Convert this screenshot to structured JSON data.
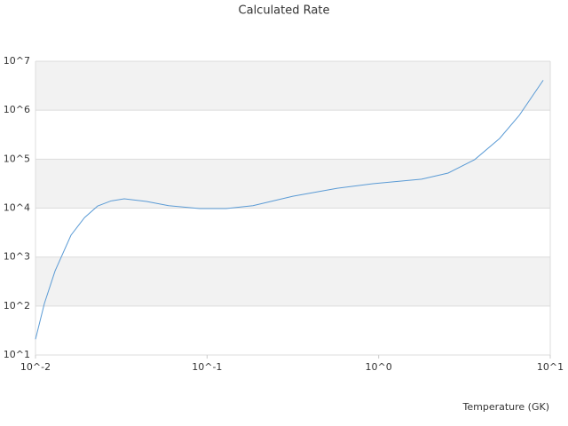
{
  "chart_data": {
    "type": "line",
    "title": "Calculated Rate",
    "x_label": "Temperature (GK)",
    "x_log": true,
    "y_log": true,
    "grid": true,
    "banded": true,
    "xlim": [
      0.01,
      10
    ],
    "ylim": [
      10,
      10000000
    ],
    "xticks": [
      {
        "value": 0.01,
        "label": "10^-2"
      },
      {
        "value": 0.1,
        "label": "10^-1"
      },
      {
        "value": 1,
        "label": "10^0"
      },
      {
        "value": 10,
        "label": "10^1"
      }
    ],
    "yticks": [
      {
        "value": 10,
        "label": "10^1"
      },
      {
        "value": 100,
        "label": "10^2"
      },
      {
        "value": 1000,
        "label": "10^3"
      },
      {
        "value": 10000,
        "label": "10^4"
      },
      {
        "value": 100000,
        "label": "10^5"
      },
      {
        "value": 1000000,
        "label": "10^6"
      },
      {
        "value": 10000000,
        "label": "10^7"
      }
    ],
    "series": [
      {
        "color": "#5b9bd5",
        "x": [
          0.01,
          0.01127,
          0.013,
          0.0161,
          0.0193,
          0.023,
          0.0275,
          0.0329,
          0.0444,
          0.0597,
          0.0906,
          0.129,
          0.185,
          0.316,
          0.574,
          0.925,
          1.78,
          2.54,
          3.63,
          5.07,
          6.59,
          9.1
        ],
        "values": [
          21,
          113,
          520,
          2800,
          6400,
          11000,
          14000,
          15500,
          13700,
          11200,
          9800,
          9800,
          11200,
          17500,
          25500,
          31500,
          39000,
          52000,
          98000,
          265000,
          780000,
          4100000
        ]
      }
    ]
  }
}
